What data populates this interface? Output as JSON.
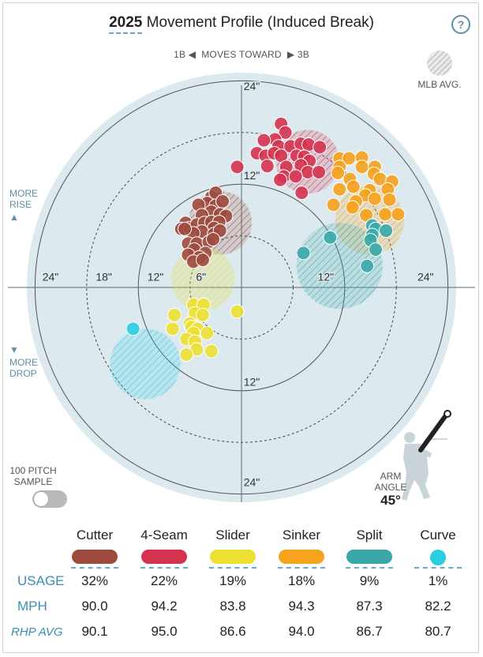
{
  "header": {
    "year": "2025",
    "title": "Movement Profile (Induced Break)",
    "help_icon": "question-circle-icon",
    "moves_left": "1B",
    "moves_text": "MOVES TOWARD",
    "moves_right": "3B",
    "mlb_avg_label": "MLB AVG."
  },
  "side_labels": {
    "more_rise": [
      "MORE",
      "RISE"
    ],
    "more_drop": [
      "MORE",
      "DROP"
    ]
  },
  "arm_angle": {
    "label1": "ARM",
    "label2": "ANGLE",
    "value": "45°"
  },
  "sample": {
    "label1": "100 PITCH",
    "label2": "SAMPLE",
    "toggle_on": false
  },
  "ring_labels": {
    "top": [
      "24\"",
      "12\""
    ],
    "bottom": [
      "12\"",
      "24\""
    ],
    "left": [
      "24\"",
      "18\"",
      "12\"",
      "6\""
    ],
    "right": [
      "12\"",
      "24\""
    ]
  },
  "colors": {
    "Cutter": "#9e4a3e",
    "4-Seam": "#d4334f",
    "Slider": "#ece032",
    "Sinker": "#f5a21c",
    "Split": "#3aa8a8",
    "Curve": "#2bcde3",
    "plot_bg": "#dce9ee",
    "accent": "#3a8fb3"
  },
  "chart_data": {
    "type": "scatter",
    "x_direction": "horizontal break (in), negative = toward 1B, positive = toward 3B",
    "y_direction": "induced vertical break (in)",
    "xlim": [
      -27,
      27
    ],
    "ylim": [
      -27,
      27
    ],
    "rings": [
      6,
      12,
      18,
      24
    ],
    "series": [
      {
        "name": "Cutter",
        "mlb_avg_center": [
          -2.5,
          7.5
        ],
        "points": [
          [
            -3.5,
            10.5
          ],
          [
            -3.0,
            11.0
          ],
          [
            -4.0,
            9.8
          ],
          [
            -3.0,
            9.5
          ],
          [
            -2.2,
            10.0
          ],
          [
            -5.0,
            9.6
          ],
          [
            -3.5,
            8.8
          ],
          [
            -2.5,
            8.5
          ],
          [
            -4.6,
            8.4
          ],
          [
            -1.8,
            8.3
          ],
          [
            -6.5,
            7.5
          ],
          [
            -7.0,
            6.8
          ],
          [
            -6.0,
            6.9
          ],
          [
            -5.2,
            7.3
          ],
          [
            -4.3,
            7.5
          ],
          [
            -3.5,
            7.6
          ],
          [
            -2.6,
            7.6
          ],
          [
            -3.2,
            6.9
          ],
          [
            -4.6,
            6.5
          ],
          [
            -5.6,
            6.3
          ],
          [
            -3.2,
            6.2
          ],
          [
            -2.5,
            6.6
          ],
          [
            -6.2,
            5.1
          ],
          [
            -5.2,
            5.1
          ],
          [
            -3.8,
            5.3
          ],
          [
            -5.5,
            4.4
          ],
          [
            -4.2,
            4.0
          ],
          [
            -6.2,
            3.8
          ],
          [
            -4.9,
            3.5
          ],
          [
            -5.6,
            3.0
          ],
          [
            -4.5,
            3.2
          ],
          [
            -3.3,
            5.6
          ],
          [
            -6.6,
            6.8
          ]
        ]
      },
      {
        "name": "4-Seam",
        "mlb_avg_center": [
          7.7,
          14.6
        ],
        "points": [
          [
            4.6,
            19.0
          ],
          [
            5.1,
            18.0
          ],
          [
            3.9,
            17.2
          ],
          [
            2.6,
            17.1
          ],
          [
            4.3,
            16.4
          ],
          [
            5.7,
            16.4
          ],
          [
            6.9,
            16.7
          ],
          [
            7.8,
            16.6
          ],
          [
            9.1,
            16.3
          ],
          [
            1.8,
            15.6
          ],
          [
            2.8,
            15.3
          ],
          [
            3.8,
            15.6
          ],
          [
            4.6,
            15.3
          ],
          [
            6.4,
            15.3
          ],
          [
            7.3,
            15.2
          ],
          [
            7.9,
            14.7
          ],
          [
            6.9,
            14.2
          ],
          [
            3.0,
            14.1
          ],
          [
            5.2,
            14.0
          ],
          [
            7.7,
            13.4
          ],
          [
            9.0,
            13.4
          ],
          [
            4.9,
            12.9
          ],
          [
            6.3,
            12.9
          ],
          [
            4.5,
            12.5
          ],
          [
            7.0,
            11.0
          ],
          [
            -0.5,
            14.0
          ]
        ]
      },
      {
        "name": "Sinker",
        "mlb_avg_center": [
          14.9,
          7.8
        ],
        "points": [
          [
            11.4,
            15.0
          ],
          [
            12.5,
            15.0
          ],
          [
            14.0,
            15.1
          ],
          [
            11.4,
            14.0
          ],
          [
            14.0,
            14.0
          ],
          [
            15.5,
            14.0
          ],
          [
            11.2,
            13.3
          ],
          [
            15.4,
            13.2
          ],
          [
            16.1,
            12.6
          ],
          [
            12.6,
            12.6
          ],
          [
            17.5,
            12.3
          ],
          [
            13.0,
            11.7
          ],
          [
            17.0,
            11.4
          ],
          [
            14.9,
            11.3
          ],
          [
            11.4,
            11.4
          ],
          [
            14.4,
            10.7
          ],
          [
            15.5,
            10.3
          ],
          [
            17.2,
            10.2
          ],
          [
            13.3,
            10.0
          ],
          [
            10.7,
            9.6
          ],
          [
            12.9,
            9.3
          ],
          [
            16.7,
            8.5
          ],
          [
            14.5,
            8.4
          ],
          [
            18.2,
            8.5
          ]
        ]
      },
      {
        "name": "Split",
        "mlb_avg_center": [
          11.4,
          2.5
        ],
        "points": [
          [
            15.2,
            7.2
          ],
          [
            15.6,
            6.8
          ],
          [
            16.8,
            6.6
          ],
          [
            15.2,
            6.1
          ],
          [
            15.0,
            5.5
          ],
          [
            10.3,
            5.8
          ],
          [
            15.6,
            4.4
          ],
          [
            7.2,
            4.0
          ],
          [
            14.6,
            2.5
          ]
        ]
      },
      {
        "name": "Slider",
        "mlb_avg_center": [
          -4.5,
          1.0
        ],
        "points": [
          [
            -5.6,
            -2.0
          ],
          [
            -4.4,
            -2.0
          ],
          [
            -5.4,
            -3.0
          ],
          [
            -4.5,
            -3.2
          ],
          [
            -0.5,
            -2.8
          ],
          [
            -7.8,
            -3.2
          ],
          [
            -6.0,
            -4.2
          ],
          [
            -5.8,
            -4.6
          ],
          [
            -5.1,
            -4.8
          ],
          [
            -8.0,
            -4.8
          ],
          [
            -5.6,
            -5.3
          ],
          [
            -4.0,
            -5.3
          ],
          [
            -6.4,
            -6.0
          ],
          [
            -5.4,
            -6.3
          ],
          [
            -5.2,
            -7.2
          ],
          [
            -3.5,
            -7.4
          ],
          [
            -6.4,
            -7.8
          ]
        ]
      },
      {
        "name": "Curve",
        "mlb_avg_center": [
          -11.2,
          -8.9
        ],
        "points": [
          [
            -12.6,
            -4.8
          ]
        ]
      }
    ]
  },
  "table": {
    "pitches": [
      "Cutter",
      "4-Seam",
      "Slider",
      "Sinker",
      "Split",
      "Curve"
    ],
    "rows": [
      {
        "label": "USAGE",
        "italic": false,
        "values": [
          "32%",
          "22%",
          "19%",
          "18%",
          "9%",
          "1%"
        ]
      },
      {
        "label": "MPH",
        "italic": false,
        "values": [
          "90.0",
          "94.2",
          "83.8",
          "94.3",
          "87.3",
          "82.2"
        ]
      },
      {
        "label": "RHP AVG",
        "italic": true,
        "values": [
          "90.1",
          "95.0",
          "86.6",
          "94.0",
          "86.7",
          "80.7"
        ]
      }
    ]
  }
}
